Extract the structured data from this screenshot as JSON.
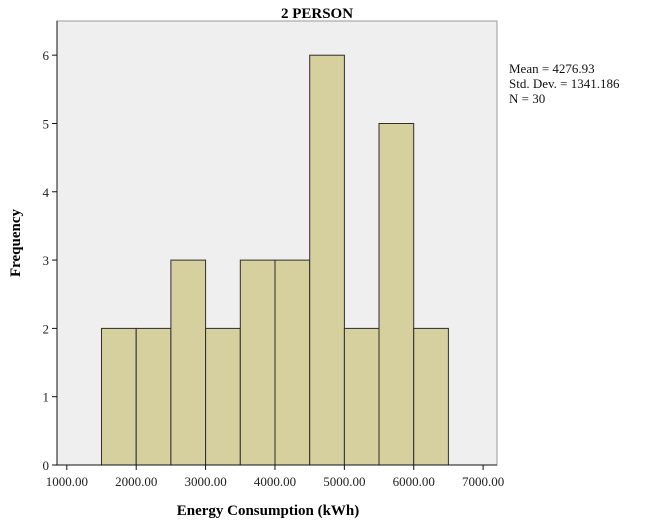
{
  "chart_data": {
    "type": "bar",
    "title": "2 PERSON",
    "xlabel": "Energy Consumption (kWh)",
    "ylabel": "Frequency",
    "xlim": [
      700,
      7200
    ],
    "ylim": [
      0,
      6.5
    ],
    "x_ticks": [
      1000,
      2000,
      3000,
      4000,
      5000,
      6000,
      7000
    ],
    "x_tick_labels": [
      "1000.00",
      "2000.00",
      "3000.00",
      "4000.00",
      "5000.00",
      "6000.00",
      "7000.00"
    ],
    "y_ticks": [
      0,
      1,
      2,
      3,
      4,
      5,
      6
    ],
    "y_tick_labels": [
      "0",
      "1",
      "2",
      "3",
      "4",
      "5",
      "6"
    ],
    "bin_edges": [
      1500,
      2000,
      2500,
      3000,
      3500,
      4000,
      4500,
      5000,
      5500,
      6000,
      6500
    ],
    "values": [
      2,
      2,
      3,
      2,
      3,
      3,
      6,
      2,
      5,
      2
    ],
    "bar_color": "#d6cf9e",
    "plot_background": "#efefef",
    "stats": {
      "mean": "Mean = 4276.93",
      "std_dev": "Std. Dev. = 1341.186",
      "n": "N = 30"
    }
  }
}
